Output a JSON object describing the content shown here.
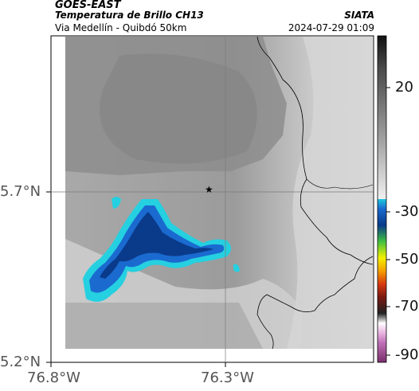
{
  "header": {
    "satellite": "GOES-EAST",
    "product": "Temperatura de Brillo CH13",
    "location": "Via Medellín - Quibdó 50km",
    "organization": "SIATA",
    "timestamp": "2024-07-29 01:09"
  },
  "axes": {
    "lat_labels": [
      "5.7°N",
      "5.2°N"
    ],
    "lon_labels": [
      "76.8°W",
      "76.3°W"
    ]
  },
  "marker": {
    "symbol": "★",
    "type": "star-marker"
  },
  "colorbar": {
    "tick_labels": [
      "20",
      "-30",
      "-50",
      "-70",
      "-90"
    ]
  }
}
